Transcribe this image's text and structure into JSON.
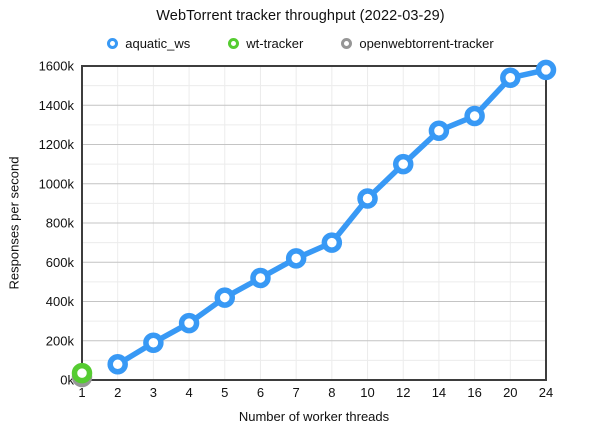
{
  "title": "WebTorrent tracker throughput (2022-03-29)",
  "legend": {
    "items": [
      {
        "label": "aquatic_ws",
        "color": "#3899f5"
      },
      {
        "label": "wt-tracker",
        "color": "#55cc31"
      },
      {
        "label": "openwebtorrent-tracker",
        "color": "#969696"
      }
    ]
  },
  "colors": {
    "frame": "#3d3d3d",
    "grid_minor": "#ececec",
    "grid_major": "#c4c4c4",
    "text": "#111111",
    "background": "#ffffff"
  },
  "chart_data": {
    "type": "line",
    "title": "WebTorrent tracker throughput (2022-03-29)",
    "xlabel": "Number of worker threads",
    "ylabel": "Responses per second",
    "categories": [
      "1",
      "2",
      "3",
      "4",
      "5",
      "6",
      "7",
      "8",
      "10",
      "12",
      "14",
      "16",
      "20",
      "24"
    ],
    "y_tick_labels": [
      "0k",
      "200k",
      "400k",
      "600k",
      "800k",
      "1000k",
      "1200k",
      "1400k",
      "1600k"
    ],
    "ylim_k": [
      0,
      1600
    ],
    "grid": {
      "minor_step_k": 100,
      "major_step_k": 200,
      "vertical_gridlines": true
    },
    "legend_position": "top",
    "units": "thousands of responses per second (k)",
    "series": [
      {
        "name": "aquatic_ws",
        "color": "#3899f5",
        "marker": "open-circle",
        "data": [
          {
            "threads": "2",
            "value_k": 80
          },
          {
            "threads": "3",
            "value_k": 190
          },
          {
            "threads": "4",
            "value_k": 290
          },
          {
            "threads": "5",
            "value_k": 420
          },
          {
            "threads": "6",
            "value_k": 520
          },
          {
            "threads": "7",
            "value_k": 620
          },
          {
            "threads": "8",
            "value_k": 700
          },
          {
            "threads": "10",
            "value_k": 925
          },
          {
            "threads": "12",
            "value_k": 1100
          },
          {
            "threads": "14",
            "value_k": 1270
          },
          {
            "threads": "16",
            "value_k": 1345
          },
          {
            "threads": "20",
            "value_k": 1540
          },
          {
            "threads": "24",
            "value_k": 1580
          }
        ]
      },
      {
        "name": "wt-tracker",
        "color": "#55cc31",
        "marker": "open-circle",
        "data": [
          {
            "threads": "1",
            "value_k": 35
          }
        ]
      },
      {
        "name": "openwebtorrent-tracker",
        "color": "#969696",
        "marker": "open-circle",
        "data": [
          {
            "threads": "1",
            "value_k": 15
          }
        ]
      }
    ]
  }
}
